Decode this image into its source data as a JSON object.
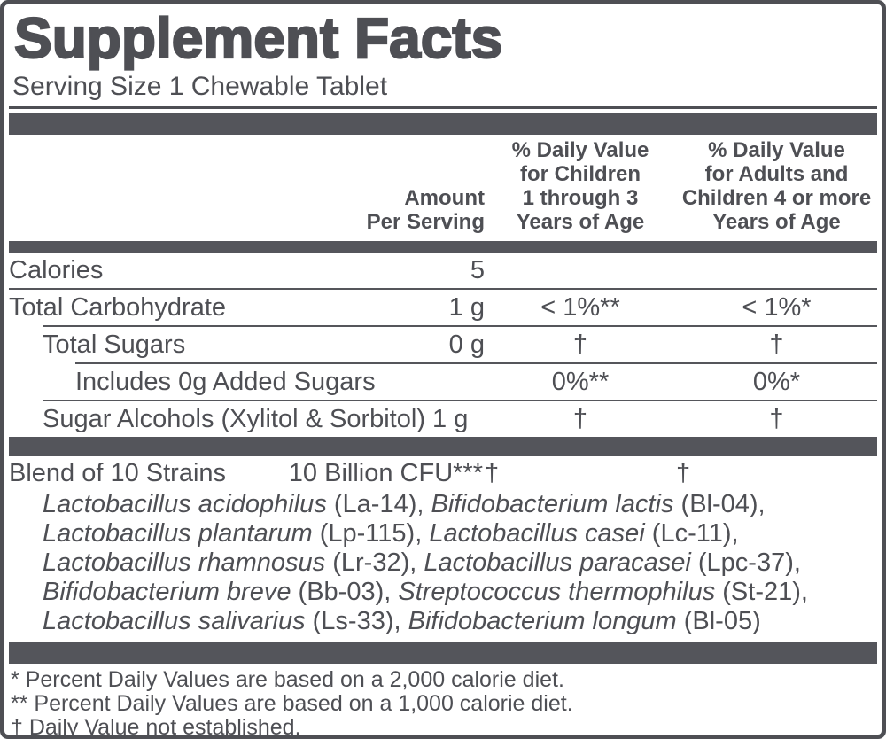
{
  "colors": {
    "ink": "#4e4f54",
    "bar": "#54555b",
    "background": "#ffffff"
  },
  "title": "Supplement Facts",
  "serving_size": "Serving Size 1 Chewable Tablet",
  "header": {
    "amount": [
      "Amount",
      "Per Serving"
    ],
    "dv_children": [
      "% Daily Value",
      "for Children",
      "1 through 3",
      "Years of Age"
    ],
    "dv_adults": [
      "% Daily Value",
      "for Adults and",
      "Children 4 or more",
      "Years of Age"
    ]
  },
  "rows": [
    {
      "label": "Calories",
      "amount": "5",
      "dv_children": "",
      "dv_adults": ""
    },
    {
      "label": "Total Carbohydrate",
      "amount": "1 g",
      "dv_children": "< 1%**",
      "dv_adults": "< 1%*"
    },
    {
      "label": "Total Sugars",
      "amount": "0 g",
      "dv_children": "†",
      "dv_adults": "†"
    },
    {
      "label": "Includes 0g Added Sugars",
      "amount": "",
      "dv_children": "0%**",
      "dv_adults": "0%*"
    },
    {
      "label": "Sugar Alcohols (Xylitol & Sorbitol) 1 g",
      "amount": "",
      "dv_children": "†",
      "dv_adults": "†"
    }
  ],
  "blend": {
    "name": "Blend of 10 Strains",
    "amount": "10 Billion CFU***",
    "dv_children": "†",
    "dv_adults": "†",
    "strain_lines": [
      [
        {
          "name": "Lactobacillus acidophilus",
          "code": "(La-14),"
        },
        {
          "name": "Bifidobacterium lactis",
          "code": "(Bl-04),"
        }
      ],
      [
        {
          "name": "Lactobacillus plantarum",
          "code": "(Lp-115),"
        },
        {
          "name": "Lactobacillus casei",
          "code": "(Lc-11),"
        }
      ],
      [
        {
          "name": "Lactobacillus rhamnosus",
          "code": "(Lr-32),"
        },
        {
          "name": "Lactobacillus paracasei",
          "code": "(Lpc-37),"
        }
      ],
      [
        {
          "name": "Bifidobacterium breve",
          "code": "(Bb-03),"
        },
        {
          "name": "Streptococcus thermophilus",
          "code": "(St-21),"
        }
      ],
      [
        {
          "name": "Lactobacillus salivarius",
          "code": "(Ls-33),"
        },
        {
          "name": "Bifidobacterium longum",
          "code": "(Bl-05)"
        }
      ]
    ]
  },
  "footnotes": [
    "* Percent Daily Values are based on a 2,000 calorie diet.",
    "** Percent Daily Values are based on a 1,000 calorie diet.",
    "† Daily Value not established."
  ]
}
